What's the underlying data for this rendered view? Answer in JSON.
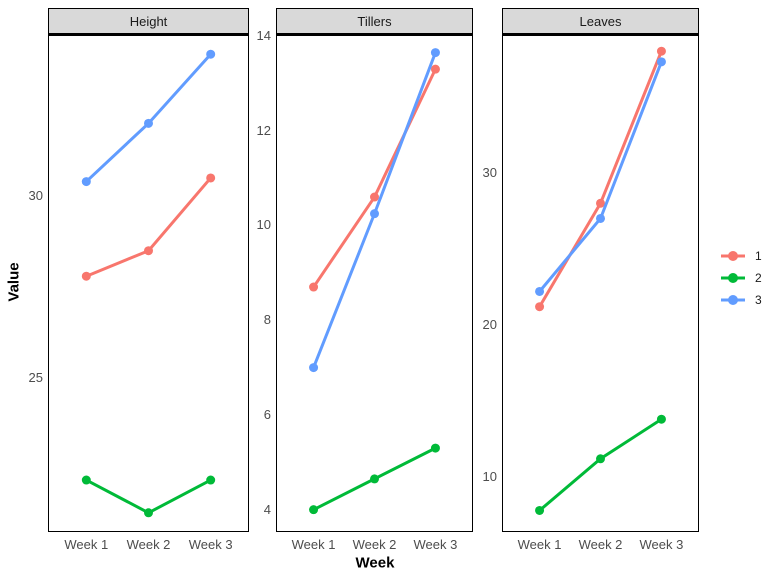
{
  "figure": {
    "x_title": "Week",
    "y_title": "Value",
    "categories": [
      "Week 1",
      "Week 2",
      "Week 3"
    ]
  },
  "legend": {
    "items": [
      {
        "label": "1",
        "color": "#F8766D"
      },
      {
        "label": "2",
        "color": "#00BA38"
      },
      {
        "label": "3",
        "color": "#619CFF"
      }
    ]
  },
  "chart_data": [
    {
      "type": "line",
      "panel": "Height",
      "categories": [
        "Week 1",
        "Week 2",
        "Week 3"
      ],
      "series": [
        {
          "name": "1",
          "color": "#F8766D",
          "values": [
            27.8,
            28.5,
            30.5
          ]
        },
        {
          "name": "2",
          "color": "#00BA38",
          "values": [
            22.2,
            21.3,
            22.2
          ]
        },
        {
          "name": "3",
          "color": "#619CFF",
          "values": [
            30.4,
            32.0,
            33.9
          ]
        }
      ],
      "xlabel": "Week",
      "ylabel": "Value",
      "ylim": [
        20.8,
        34.4
      ],
      "yticks": [
        25,
        30
      ],
      "grid": false,
      "legend_position": "right"
    },
    {
      "type": "line",
      "panel": "Tillers",
      "categories": [
        "Week 1",
        "Week 2",
        "Week 3"
      ],
      "series": [
        {
          "name": "1",
          "color": "#F8766D",
          "values": [
            8.7,
            10.6,
            13.3
          ]
        },
        {
          "name": "2",
          "color": "#00BA38",
          "values": [
            4.0,
            4.65,
            5.3
          ]
        },
        {
          "name": "3",
          "color": "#619CFF",
          "values": [
            7.0,
            10.25,
            13.65
          ]
        }
      ],
      "xlabel": "Week",
      "ylabel": "Value",
      "ylim": [
        3.55,
        14.0
      ],
      "yticks": [
        4,
        6,
        8,
        10,
        12,
        14
      ],
      "grid": false,
      "legend_position": "right"
    },
    {
      "type": "line",
      "panel": "Leaves",
      "categories": [
        "Week 1",
        "Week 2",
        "Week 3"
      ],
      "series": [
        {
          "name": "1",
          "color": "#F8766D",
          "values": [
            21.2,
            28.0,
            38.0
          ]
        },
        {
          "name": "2",
          "color": "#00BA38",
          "values": [
            7.8,
            11.2,
            13.8
          ]
        },
        {
          "name": "3",
          "color": "#619CFF",
          "values": [
            22.2,
            27.0,
            37.3
          ]
        }
      ],
      "xlabel": "Week",
      "ylabel": "Value",
      "ylim": [
        6.45,
        39.0
      ],
      "yticks": [
        10,
        20,
        30
      ],
      "grid": false,
      "legend_position": "right"
    }
  ]
}
